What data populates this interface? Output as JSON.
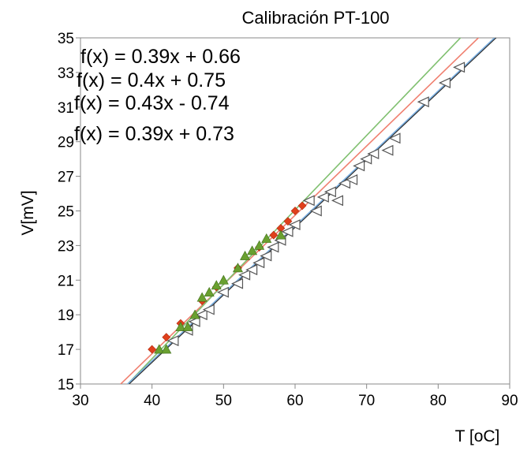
{
  "chart_data": {
    "type": "scatter",
    "title": "Calibración PT-100",
    "xlabel": "T [oC]",
    "ylabel": "V[mV]",
    "xlim": [
      30,
      90
    ],
    "ylim": [
      15,
      35
    ],
    "x_ticks": [
      "30",
      "40",
      "50",
      "60",
      "70",
      "80",
      "90"
    ],
    "y_ticks": [
      "15",
      "17",
      "19",
      "21",
      "23",
      "25",
      "27",
      "29",
      "31",
      "33",
      "35"
    ],
    "grid": false,
    "legend": "none",
    "trendline_labels": [
      "f(x) = 0.39x + 0.66",
      "f(x) = 0.4x + 0.75",
      "f(x) = 0.43x - 0.74",
      "f(x) = 0.39x + 0.73"
    ],
    "series": [
      {
        "marker": "triangle-left-outline",
        "color": "#555555",
        "fit": {
          "slope": 0.39,
          "intercept": 0.66,
          "color": "#2a2a2a"
        },
        "x": [
          43,
          45,
          46,
          47,
          48,
          50,
          52,
          53,
          54,
          55,
          56,
          57,
          58,
          59,
          60,
          62,
          63,
          64,
          65,
          66,
          67,
          68,
          69,
          70,
          71,
          73,
          74,
          78,
          81,
          83
        ],
        "y": [
          17.5,
          18.1,
          18.6,
          19.0,
          19.3,
          20.3,
          20.8,
          21.3,
          21.6,
          22.0,
          22.4,
          22.9,
          23.3,
          23.8,
          24.2,
          25.6,
          25.0,
          25.8,
          26.1,
          25.6,
          26.6,
          26.8,
          27.6,
          28.0,
          28.3,
          28.5,
          29.2,
          31.3,
          32.4,
          33.3
        ]
      },
      {
        "marker": "diamond",
        "color": "#e0401c",
        "fit": {
          "slope": 0.4,
          "intercept": 0.75,
          "color": "#f08070"
        },
        "x": [
          40,
          42,
          44,
          47,
          49,
          52,
          55,
          57,
          58,
          59,
          60,
          61
        ],
        "y": [
          17.0,
          17.7,
          18.5,
          19.8,
          20.6,
          21.7,
          22.9,
          23.6,
          24.0,
          24.4,
          25.0,
          25.3
        ]
      },
      {
        "marker": "triangle",
        "color": "#6aa030",
        "fit": {
          "slope": 0.43,
          "intercept": -0.74,
          "color": "#80c070"
        },
        "x": [
          41,
          42,
          44,
          45,
          46,
          47,
          48,
          49,
          50,
          52,
          53,
          54,
          55,
          56,
          58
        ],
        "y": [
          17.0,
          17.0,
          18.3,
          18.3,
          19.0,
          20.0,
          20.3,
          20.7,
          21.0,
          21.7,
          22.4,
          22.7,
          23.0,
          23.4,
          23.6
        ]
      },
      {
        "marker": "none",
        "color": "#5b9bd5",
        "fit": {
          "slope": 0.39,
          "intercept": 0.73,
          "color": "#7aaee0"
        },
        "x": [],
        "y": []
      }
    ]
  }
}
